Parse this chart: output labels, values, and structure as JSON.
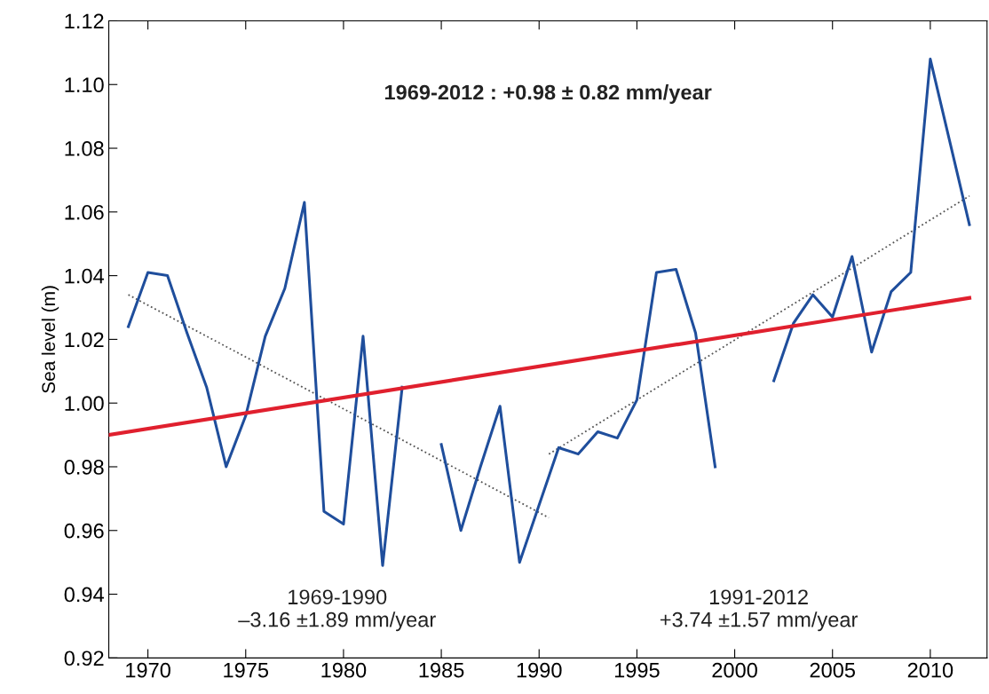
{
  "chart_data": {
    "type": "line",
    "ylabel": "Sea level (m)",
    "xlim": [
      1968,
      2012.9
    ],
    "ylim": [
      0.92,
      1.12
    ],
    "xticks": [
      1970,
      1975,
      1980,
      1985,
      1990,
      1995,
      2000,
      2005,
      2010
    ],
    "yticks": [
      {
        "value": 0.92,
        "label": "0.92"
      },
      {
        "value": 0.94,
        "label": "0.94"
      },
      {
        "value": 0.96,
        "label": "0.96"
      },
      {
        "value": 0.98,
        "label": "0.98"
      },
      {
        "value": 1.0,
        "label": "1.00"
      },
      {
        "value": 1.02,
        "label": "1.02"
      },
      {
        "value": 1.04,
        "label": "1.04"
      },
      {
        "value": 1.06,
        "label": "1.06"
      },
      {
        "value": 1.08,
        "label": "1.08"
      },
      {
        "value": 1.1,
        "label": "1.10"
      },
      {
        "value": 1.12,
        "label": "1.12"
      }
    ],
    "grid": false,
    "legend": false,
    "marker": "none",
    "line_style": "solid",
    "series": [
      {
        "color": "#1f4e9c",
        "x": [
          1969,
          1970,
          1971,
          1972,
          1973,
          1974,
          1975,
          1976,
          1977,
          1978,
          1979,
          1980,
          1981,
          1982,
          1983,
          1984,
          1985,
          1986,
          1987,
          1988,
          1989,
          1990,
          1991,
          1992,
          1993,
          1994,
          1995,
          1996,
          1997,
          1998,
          1999,
          2000,
          2001,
          2002,
          2003,
          2004,
          2005,
          2006,
          2007,
          2008,
          2009,
          2010,
          2011,
          2012
        ],
        "values": [
          1.024,
          1.041,
          1.04,
          1.022,
          1.005,
          0.98,
          0.996,
          1.021,
          1.036,
          1.063,
          0.966,
          0.962,
          1.021,
          0.949,
          1.005,
          null,
          0.987,
          0.96,
          0.98,
          0.999,
          0.95,
          0.968,
          0.986,
          0.984,
          0.991,
          0.989,
          1.001,
          1.041,
          1.042,
          1.022,
          0.98,
          null,
          null,
          1.007,
          1.025,
          1.034,
          1.027,
          1.046,
          1.016,
          1.035,
          1.041,
          1.108,
          1.082,
          1.056
        ]
      },
      {
        "color": "#e0202e",
        "x": [
          1968,
          2012
        ],
        "values": [
          0.99,
          1.033
        ]
      },
      {
        "color": "#555555",
        "line_style": "dotted",
        "x": [
          1969,
          1990.5
        ],
        "values": [
          1.034,
          0.964
        ]
      },
      {
        "color": "#555555",
        "line_style": "dotted",
        "x": [
          1990.5,
          2012
        ],
        "values": [
          0.984,
          1.065
        ]
      }
    ],
    "annotations": [
      "1969-2012 : +0.98 ± 0.82 mm/year",
      "1969-1990\n–3.16 ±1.89 mm/year",
      "1991-2012\n+3.74 ±1.57 mm/year"
    ]
  }
}
